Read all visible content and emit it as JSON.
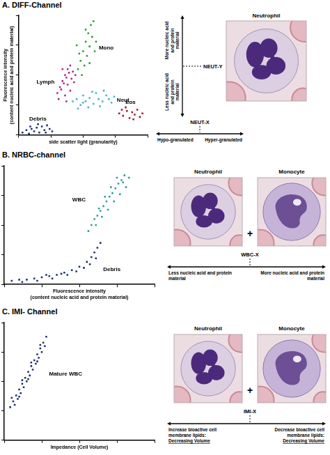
{
  "chart_data": [
    {
      "type": "scatter",
      "title": "A. DIFF-Channel",
      "x_label": "side scatter light (granularity)",
      "y_label": "Fluorescence intensity (content nucleic acid and protein material)",
      "xlim": [
        0,
        100
      ],
      "ylim": [
        0,
        100
      ],
      "xticks": [
        0,
        25,
        50,
        75,
        100
      ],
      "yticks": [
        0,
        25,
        50,
        75,
        100
      ],
      "grid": false,
      "tick_labels": false,
      "marker": "square",
      "series": [
        {
          "name": "Debris",
          "color": "#1c2f6e",
          "x": [
            3,
            6,
            8,
            10,
            12,
            14,
            16,
            18,
            20,
            22,
            24,
            26,
            9,
            15,
            21
          ],
          "values": [
            2,
            4,
            1,
            5,
            3,
            6,
            2,
            7,
            4,
            8,
            5,
            3,
            7,
            9,
            2
          ]
        },
        {
          "name": "Lymph",
          "color": "#b3268a",
          "x": [
            30,
            32,
            34,
            36,
            38,
            33,
            35,
            37,
            39,
            40,
            31,
            36,
            38,
            41,
            42,
            34,
            44,
            40,
            37,
            43
          ],
          "values": [
            35,
            40,
            45,
            50,
            55,
            38,
            43,
            48,
            52,
            58,
            30,
            33,
            42,
            47,
            53,
            55,
            50,
            37,
            28,
            44
          ]
        },
        {
          "name": "Mono",
          "color": "#2f9a3a",
          "x": [
            46,
            48,
            50,
            52,
            54,
            56,
            49,
            51,
            53,
            55,
            57,
            58,
            47,
            59,
            60,
            52,
            55,
            45
          ],
          "values": [
            55,
            62,
            70,
            78,
            85,
            92,
            50,
            58,
            66,
            74,
            82,
            95,
            68,
            70,
            78,
            88,
            60,
            75
          ]
        },
        {
          "name": "Neut",
          "color": "#3fb6c6",
          "x": [
            42,
            45,
            48,
            50,
            52,
            55,
            58,
            60,
            62,
            65,
            68,
            70,
            72,
            74,
            46,
            54,
            63,
            57,
            66,
            50
          ],
          "values": [
            28,
            30,
            25,
            33,
            28,
            31,
            26,
            35,
            30,
            28,
            33,
            30,
            27,
            32,
            22,
            23,
            24,
            36,
            37,
            27
          ]
        },
        {
          "name": "Eos",
          "color": "#a3162a",
          "x": [
            78,
            81,
            84,
            86,
            88,
            90,
            92,
            94,
            96,
            83,
            89,
            80
          ],
          "values": [
            18,
            16,
            20,
            14,
            19,
            17,
            21,
            15,
            18,
            23,
            13,
            21
          ]
        }
      ]
    },
    {
      "type": "scatter",
      "title": "B. NRBC-channel",
      "x_label": "Fluorescence intensity (content nucleic acid and protein material)",
      "xlim": [
        0,
        100
      ],
      "ylim": [
        0,
        100
      ],
      "xticks": [
        0,
        25,
        50,
        75,
        100
      ],
      "yticks": [
        0,
        25,
        50,
        75,
        100
      ],
      "grid": false,
      "tick_labels": false,
      "marker": "square",
      "series": [
        {
          "name": "WBC",
          "color": "#2a9d96",
          "x": [
            56,
            58,
            60,
            62,
            64,
            66,
            68,
            70,
            72,
            74,
            76,
            78,
            80,
            61,
            65,
            69,
            73,
            77,
            81,
            67,
            71,
            75,
            63,
            79,
            83
          ],
          "values": [
            45,
            50,
            55,
            58,
            62,
            66,
            70,
            74,
            77,
            81,
            85,
            88,
            92,
            50,
            57,
            63,
            70,
            76,
            82,
            74,
            82,
            90,
            64,
            86,
            90
          ]
        },
        {
          "name": "Debris",
          "color": "#1c3170",
          "x": [
            5,
            10,
            15,
            20,
            25,
            30,
            35,
            40,
            45,
            50,
            55,
            58,
            60,
            62,
            64,
            12,
            22,
            32,
            42,
            48,
            53,
            57,
            61,
            38,
            28
          ],
          "values": [
            3,
            4,
            4,
            5,
            6,
            7,
            8,
            10,
            12,
            15,
            19,
            23,
            27,
            31,
            35,
            2,
            3,
            5,
            8,
            11,
            14,
            17,
            22,
            9,
            8
          ]
        }
      ]
    },
    {
      "type": "scatter",
      "title": "C. IMI- Channel",
      "x_label": "Impedance (Cell Volume)",
      "xlim": [
        0,
        100
      ],
      "ylim": [
        0,
        100
      ],
      "xticks": [
        0,
        25,
        50,
        75,
        100
      ],
      "yticks": [
        0,
        25,
        50,
        75,
        100
      ],
      "grid": false,
      "tick_labels": false,
      "marker": "square",
      "series": [
        {
          "name": "Mature WBC",
          "color": "#1c2f6e",
          "x": [
            4,
            6,
            8,
            10,
            12,
            14,
            16,
            18,
            20,
            22,
            24,
            26,
            28,
            7,
            9,
            11,
            13,
            15,
            17,
            19,
            21,
            23,
            25,
            27,
            10,
            16,
            22,
            5,
            12,
            18,
            24
          ],
          "values": [
            28,
            33,
            38,
            43,
            48,
            53,
            58,
            63,
            68,
            73,
            78,
            83,
            88,
            30,
            35,
            40,
            45,
            50,
            55,
            60,
            65,
            70,
            75,
            80,
            37,
            52,
            67,
            36,
            51,
            66,
            81
          ]
        }
      ]
    }
  ],
  "panels": [
    {
      "cells": [
        "Neutrophil"
      ],
      "y_axis": {
        "name": "NEUT-Y",
        "up": "More nucleic acid and protein material",
        "down": "Less nucleic acid and protein material"
      },
      "x_axis": {
        "name": "NEUT-X",
        "left": "Hypo-granulated",
        "right": "Hyper-granulated"
      }
    },
    {
      "cells": [
        "Neutrophil",
        "Monocyte"
      ],
      "join": "+",
      "x_axis": {
        "name": "WBC-X",
        "left": "Less nucleic acid and protein material",
        "right": "More nucleic acid and protein material"
      }
    },
    {
      "cells": [
        "Neutrophil",
        "Monocyte"
      ],
      "join": "+",
      "x_axis": {
        "name": "IMI-X",
        "left": "Increase bioactive cell membrane lipids: Decreasing Volume",
        "right": "Decrease bioactive cell membrane lipids: Decreasing Volume"
      }
    }
  ]
}
